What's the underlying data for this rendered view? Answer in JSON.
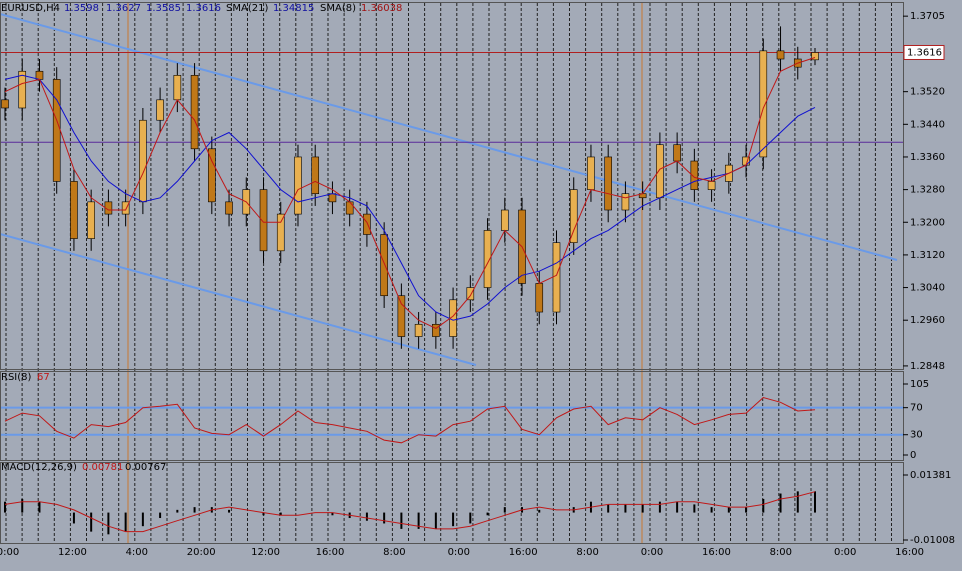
{
  "chart_data": [
    {
      "type": "candlestick",
      "title": "EURUSD,H4",
      "open": [
        1.35,
        1.348,
        1.357,
        1.355,
        1.33,
        1.316,
        1.325,
        1.322,
        1.325,
        1.345,
        1.35,
        1.356,
        1.338,
        1.325,
        1.322,
        1.328,
        1.313,
        1.322,
        1.336,
        1.327,
        1.325,
        1.322,
        1.317,
        1.302,
        1.292,
        1.295,
        1.292,
        1.301,
        1.304,
        1.318,
        1.323,
        1.305,
        1.298,
        1.315,
        1.328,
        1.336,
        1.323,
        1.327,
        1.326,
        1.339,
        1.335,
        1.328,
        1.33,
        1.334,
        1.336,
        1.362,
        1.36,
        1.3598
      ],
      "high": [
        1.353,
        1.36,
        1.36,
        1.358,
        1.333,
        1.328,
        1.328,
        1.328,
        1.348,
        1.353,
        1.359,
        1.359,
        1.341,
        1.328,
        1.331,
        1.331,
        1.325,
        1.339,
        1.339,
        1.33,
        1.328,
        1.325,
        1.32,
        1.305,
        1.298,
        1.298,
        1.304,
        1.307,
        1.321,
        1.326,
        1.326,
        1.308,
        1.318,
        1.331,
        1.339,
        1.339,
        1.33,
        1.33,
        1.342,
        1.342,
        1.338,
        1.333,
        1.337,
        1.339,
        1.365,
        1.368,
        1.363,
        1.3627
      ],
      "low": [
        1.345,
        1.345,
        1.352,
        1.327,
        1.313,
        1.313,
        1.319,
        1.319,
        1.322,
        1.342,
        1.347,
        1.335,
        1.322,
        1.319,
        1.319,
        1.31,
        1.31,
        1.319,
        1.324,
        1.322,
        1.319,
        1.314,
        1.299,
        1.289,
        1.289,
        1.289,
        1.289,
        1.298,
        1.301,
        1.315,
        1.302,
        1.295,
        1.295,
        1.312,
        1.325,
        1.32,
        1.32,
        1.323,
        1.323,
        1.332,
        1.325,
        1.325,
        1.327,
        1.331,
        1.333,
        1.357,
        1.355,
        1.3585
      ],
      "close": [
        1.348,
        1.357,
        1.355,
        1.33,
        1.316,
        1.325,
        1.322,
        1.325,
        1.345,
        1.35,
        1.356,
        1.338,
        1.325,
        1.322,
        1.328,
        1.313,
        1.322,
        1.336,
        1.327,
        1.325,
        1.322,
        1.317,
        1.302,
        1.292,
        1.295,
        1.292,
        1.301,
        1.304,
        1.318,
        1.323,
        1.305,
        1.298,
        1.315,
        1.328,
        1.336,
        1.323,
        1.327,
        1.326,
        1.339,
        1.335,
        1.328,
        1.33,
        1.334,
        1.336,
        1.362,
        1.36,
        1.358,
        1.3616
      ],
      "bull_color": "#e8b050",
      "bear_color": "#c07818",
      "wick_color": "#000000",
      "series": [
        {
          "name": "SMA(21)",
          "color": "#1010d0",
          "values": [
            1.355,
            1.356,
            1.355,
            1.35,
            1.342,
            1.335,
            1.33,
            1.327,
            1.325,
            1.326,
            1.33,
            1.335,
            1.34,
            1.342,
            1.338,
            1.333,
            1.328,
            1.325,
            1.326,
            1.327,
            1.326,
            1.324,
            1.318,
            1.31,
            1.302,
            1.298,
            1.296,
            1.297,
            1.3,
            1.304,
            1.307,
            1.308,
            1.31,
            1.313,
            1.316,
            1.318,
            1.321,
            1.324,
            1.326,
            1.328,
            1.33,
            1.331,
            1.332,
            1.334,
            1.338,
            1.342,
            1.346,
            1.34815
          ]
        },
        {
          "name": "SMA(8)",
          "color": "#c01818",
          "values": [
            1.352,
            1.354,
            1.355,
            1.345,
            1.333,
            1.326,
            1.323,
            1.323,
            1.332,
            1.342,
            1.35,
            1.345,
            1.335,
            1.327,
            1.325,
            1.32,
            1.32,
            1.328,
            1.33,
            1.328,
            1.325,
            1.32,
            1.31,
            1.3,
            1.296,
            1.294,
            1.297,
            1.302,
            1.31,
            1.318,
            1.314,
            1.305,
            1.307,
            1.318,
            1.328,
            1.327,
            1.326,
            1.327,
            1.333,
            1.335,
            1.331,
            1.33,
            1.332,
            1.334,
            1.348,
            1.357,
            1.359,
            1.36038
          ]
        }
      ],
      "lines": [
        {
          "value": 1.3396,
          "color": "#5a2a9a"
        }
      ],
      "price_line_color": "#b02020",
      "ylim": [
        1.2838,
        1.3725
      ],
      "yticks": [
        1.2848,
        {
          "value": 1.296,
          "label": "1.2960"
        },
        {
          "value": 1.304,
          "label": "1.3040"
        },
        {
          "value": 1.312,
          "label": "1.3120"
        },
        {
          "value": 1.32,
          "label": "1.3200"
        },
        {
          "value": 1.328,
          "label": "1.3280"
        },
        {
          "value": 1.336,
          "label": "1.3360"
        },
        {
          "value": 1.344,
          "label": "1.3440"
        },
        {
          "value": 1.352,
          "label": "1.3520"
        },
        1.3705
      ],
      "x_labels": [
        "0:00",
        "12:00",
        "4:00",
        "20:00",
        "12:00",
        "16:00",
        "8:00",
        "0:00",
        "16:00",
        "8:00",
        "0:00",
        "16:00",
        "8:00",
        "0:00",
        "16:00"
      ]
    },
    {
      "type": "line",
      "title": "RSI(8)",
      "color": "#c01818",
      "level_color": "#6a9ae8",
      "values": [
        50,
        62,
        58,
        35,
        25,
        45,
        42,
        48,
        70,
        72,
        75,
        40,
        32,
        30,
        45,
        28,
        45,
        65,
        48,
        45,
        40,
        35,
        22,
        18,
        30,
        28,
        45,
        50,
        68,
        72,
        38,
        30,
        55,
        68,
        72,
        45,
        55,
        52,
        70,
        60,
        45,
        52,
        60,
        62,
        85,
        78,
        65,
        67
      ],
      "levels": [
        30,
        70
      ],
      "ylim": [
        0,
        105
      ],
      "yticks": [
        0,
        30,
        70,
        105
      ]
    },
    {
      "type": "macd",
      "title": "MACD(12,26,9)",
      "color": "#000000",
      "signal_color": "#c01818",
      "values": [
        0.004,
        0.005,
        0.004,
        0.0,
        -0.004,
        -0.007,
        -0.008,
        -0.007,
        -0.005,
        -0.002,
        0.001,
        0.002,
        0.002,
        0.001,
        0.0,
        -0.001,
        -0.001,
        0.0,
        0.0,
        -0.001,
        -0.002,
        -0.003,
        -0.004,
        -0.006,
        -0.006,
        -0.006,
        -0.005,
        -0.004,
        -0.001,
        0.002,
        0.002,
        0.001,
        0.0,
        0.002,
        0.004,
        0.003,
        0.003,
        0.003,
        0.004,
        0.004,
        0.003,
        0.002,
        0.002,
        0.002,
        0.005,
        0.007,
        0.0078,
        0.00781
      ],
      "signal": [
        0.003,
        0.004,
        0.004,
        0.003,
        0.001,
        -0.002,
        -0.005,
        -0.007,
        -0.007,
        -0.005,
        -0.003,
        -0.001,
        0.001,
        0.002,
        0.001,
        0.0,
        -0.001,
        -0.001,
        0.0,
        0.0,
        -0.001,
        -0.002,
        -0.003,
        -0.004,
        -0.005,
        -0.006,
        -0.006,
        -0.005,
        -0.003,
        -0.001,
        0.001,
        0.002,
        0.001,
        0.001,
        0.002,
        0.003,
        0.003,
        0.003,
        0.003,
        0.004,
        0.004,
        0.003,
        0.002,
        0.002,
        0.003,
        0.005,
        0.006,
        0.00767
      ],
      "ylim": [
        -0.01008,
        0.01381
      ],
      "yticks": [
        0.01381,
        -0.01008
      ]
    }
  ]
}
